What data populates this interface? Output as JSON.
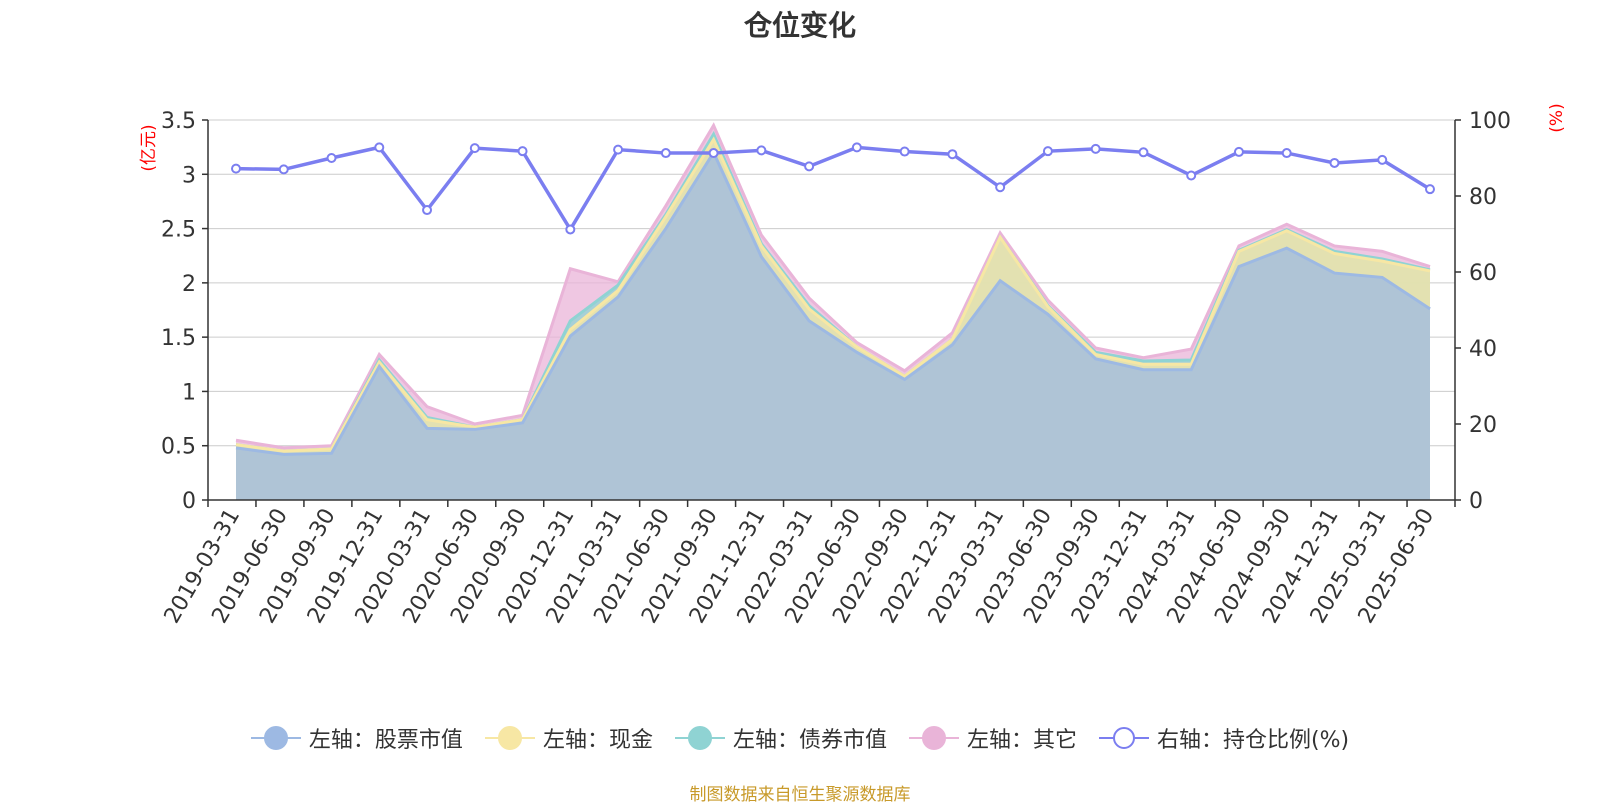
{
  "title": "仓位变化",
  "source_note": "制图数据来自恒生聚源数据库",
  "left_axis_unit": "(亿元)",
  "right_axis_unit": "(%)",
  "colors": {
    "stock": "#9db9e3",
    "cash": "#f7e7a4",
    "bond": "#8fd3d3",
    "other": "#e9b4d8",
    "ratio": "#7b7ef0",
    "axis_unit": "#ff0000",
    "source": "#c89a2a"
  },
  "legend": [
    {
      "label": "左轴：股票市值",
      "key": "stock",
      "icon": "filled-circle"
    },
    {
      "label": "左轴：现金",
      "key": "cash",
      "icon": "filled-circle"
    },
    {
      "label": "左轴：债券市值",
      "key": "bond",
      "icon": "filled-circle"
    },
    {
      "label": "左轴：其它",
      "key": "other",
      "icon": "filled-circle"
    },
    {
      "label": "右轴：持仓比例(%)",
      "key": "ratio",
      "icon": "hollow-circle"
    }
  ],
  "chart_data": {
    "type": "area",
    "stacked": true,
    "x": [
      "2019-03-31",
      "2019-06-30",
      "2019-09-30",
      "2019-12-31",
      "2020-03-31",
      "2020-06-30",
      "2020-09-30",
      "2020-12-31",
      "2021-03-31",
      "2021-06-30",
      "2021-09-30",
      "2021-12-31",
      "2022-03-31",
      "2022-06-30",
      "2022-09-30",
      "2022-12-31",
      "2023-03-31",
      "2023-06-30",
      "2023-09-30",
      "2023-12-31",
      "2024-03-31",
      "2024-06-30",
      "2024-09-30",
      "2024-12-31",
      "2025-03-31",
      "2025-06-30"
    ],
    "y_left": {
      "min": 0,
      "max": 3.5,
      "ticks": [
        "0",
        "0.5",
        "1",
        "1.5",
        "2",
        "2.5",
        "3",
        "3.5"
      ]
    },
    "y_right": {
      "min": 0,
      "max": 100,
      "ticks": [
        "0",
        "20",
        "40",
        "60",
        "80",
        "100"
      ]
    },
    "grid": true,
    "legend_position": "bottom",
    "series": [
      {
        "name": "左轴：股票市值",
        "axis": "left",
        "key": "stock",
        "values": [
          0.48,
          0.42,
          0.43,
          1.23,
          0.66,
          0.65,
          0.71,
          1.51,
          1.87,
          2.5,
          3.2,
          2.24,
          1.65,
          1.36,
          1.11,
          1.43,
          2.02,
          1.71,
          1.3,
          1.2,
          1.2,
          2.15,
          2.32,
          2.09,
          2.05,
          1.76
        ]
      },
      {
        "name": "左轴：现金",
        "axis": "left",
        "key": "cash",
        "values": [
          0.03,
          0.03,
          0.04,
          0.04,
          0.08,
          0.02,
          0.03,
          0.06,
          0.06,
          0.11,
          0.12,
          0.1,
          0.11,
          0.05,
          0.03,
          0.05,
          0.4,
          0.07,
          0.04,
          0.05,
          0.05,
          0.14,
          0.16,
          0.18,
          0.15,
          0.35
        ]
      },
      {
        "name": "左轴：债券市值",
        "axis": "left",
        "key": "bond",
        "values": [
          0.0,
          0.0,
          0.0,
          0.02,
          0.02,
          0.0,
          0.0,
          0.08,
          0.05,
          0.02,
          0.05,
          0.02,
          0.03,
          0.0,
          0.0,
          0.0,
          0.0,
          0.01,
          0.02,
          0.03,
          0.04,
          0.01,
          0.01,
          0.02,
          0.02,
          0.01
        ]
      },
      {
        "name": "左轴：其它",
        "axis": "left",
        "key": "other",
        "values": [
          0.04,
          0.03,
          0.03,
          0.05,
          0.1,
          0.03,
          0.04,
          0.48,
          0.03,
          0.08,
          0.08,
          0.08,
          0.07,
          0.04,
          0.05,
          0.06,
          0.04,
          0.05,
          0.04,
          0.03,
          0.1,
          0.04,
          0.05,
          0.05,
          0.07,
          0.03
        ]
      },
      {
        "name": "右轴：持仓比例(%)",
        "axis": "right",
        "key": "ratio",
        "type": "line",
        "values": [
          87.2,
          87.0,
          90.0,
          92.8,
          76.3,
          92.6,
          91.8,
          71.2,
          92.2,
          91.3,
          91.3,
          92.0,
          87.8,
          92.8,
          91.7,
          91.0,
          82.3,
          91.8,
          92.4,
          91.5,
          85.4,
          91.6,
          91.3,
          88.7,
          89.5,
          81.8
        ]
      }
    ]
  }
}
